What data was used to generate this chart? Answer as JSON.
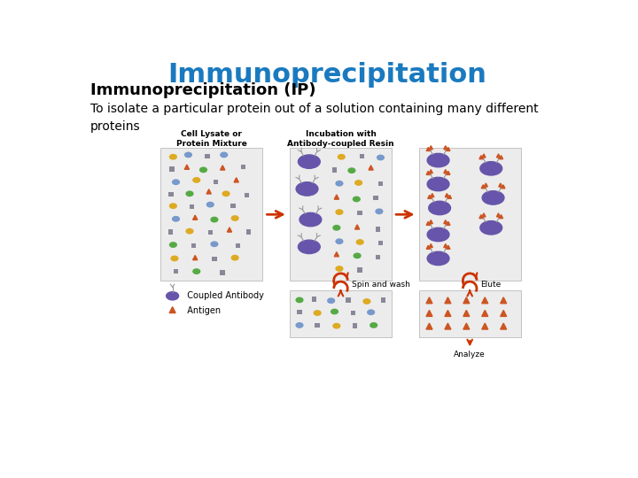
{
  "title": "Immunoprecipitation",
  "title_color": "#1a7abf",
  "title_fontsize": 22,
  "subtitle": "Immunoprecipitation (IP)",
  "subtitle_fontsize": 13,
  "body_text": "To isolate a particular protein out of a solution containing many different\nproteins",
  "body_fontsize": 10,
  "bg_color": "#ffffff",
  "label1": "Cell Lysate or\nProtein Mixture",
  "label2": "Incubation with\nAntibody-coupled Resin",
  "spin_label": "Spin and wash",
  "elute_label": "Elute",
  "analyze_label": "Analyze",
  "legend_antibody": "  Coupled Antibody",
  "legend_antigen": "  Antigen",
  "box_bg": "#ececec",
  "box_border": "#bbbbbb",
  "arrow_color": "#cc3300",
  "purple_color": "#6655aa",
  "antigen_color": "#cc5522",
  "blue_color": "#7799cc",
  "green_color": "#55aa44",
  "yellow_color": "#ddaa22",
  "gray_color": "#888899"
}
